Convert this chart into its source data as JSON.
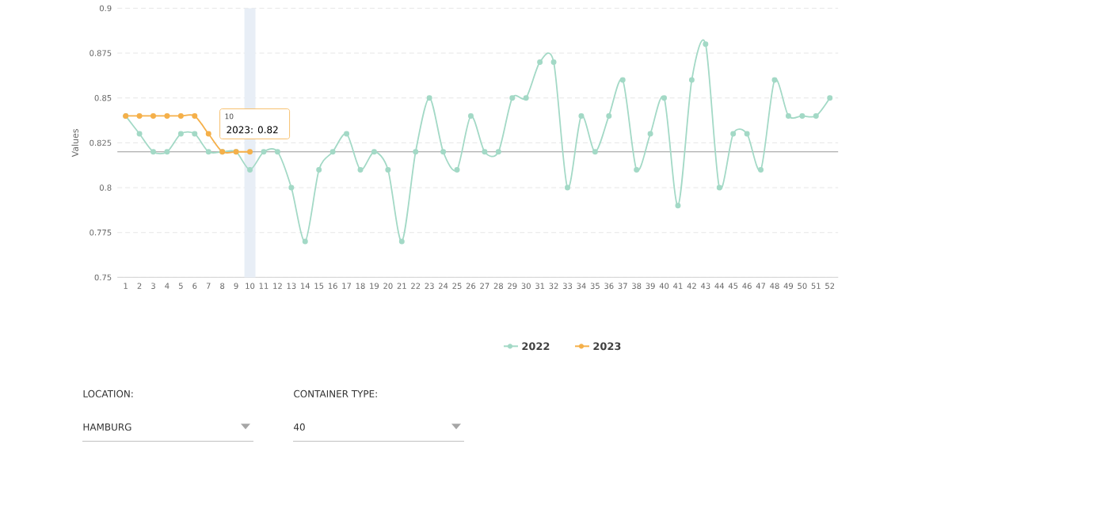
{
  "chart_data": {
    "type": "line",
    "ylabel": "Values",
    "categories": [
      "1",
      "2",
      "3",
      "4",
      "5",
      "6",
      "7",
      "8",
      "9",
      "10",
      "11",
      "12",
      "13",
      "14",
      "15",
      "16",
      "17",
      "18",
      "19",
      "20",
      "21",
      "22",
      "23",
      "24",
      "25",
      "26",
      "27",
      "28",
      "29",
      "30",
      "31",
      "32",
      "33",
      "34",
      "35",
      "36",
      "37",
      "38",
      "39",
      "40",
      "41",
      "42",
      "43",
      "44",
      "45",
      "46",
      "47",
      "48",
      "49",
      "50",
      "51",
      "52"
    ],
    "series": [
      {
        "name": "2022",
        "color": "#a3d9c6",
        "values": [
          0.84,
          0.83,
          0.82,
          0.82,
          0.83,
          0.83,
          0.82,
          0.82,
          0.82,
          0.81,
          0.82,
          0.82,
          0.8,
          0.77,
          0.81,
          0.82,
          0.83,
          0.81,
          0.82,
          0.81,
          0.77,
          0.82,
          0.85,
          0.82,
          0.81,
          0.84,
          0.82,
          0.82,
          0.85,
          0.85,
          0.87,
          0.87,
          0.8,
          0.84,
          0.82,
          0.84,
          0.86,
          0.81,
          0.83,
          0.85,
          0.79,
          0.86,
          0.88,
          0.8,
          0.83,
          0.83,
          0.81,
          0.86,
          0.84,
          0.84,
          0.84,
          0.85
        ]
      },
      {
        "name": "2023",
        "color": "#f5b04a",
        "values": [
          0.84,
          0.84,
          0.84,
          0.84,
          0.84,
          0.84,
          0.83,
          0.82,
          0.82,
          0.82,
          null,
          null,
          null,
          null,
          null,
          null,
          null,
          null,
          null,
          null,
          null,
          null,
          null,
          null,
          null,
          null,
          null,
          null,
          null,
          null,
          null,
          null,
          null,
          null,
          null,
          null,
          null,
          null,
          null,
          null,
          null,
          null,
          null,
          null,
          null,
          null,
          null,
          null,
          null,
          null,
          null,
          null
        ]
      }
    ],
    "ylim": [
      0.75,
      0.9
    ],
    "yticks": [
      0.75,
      0.775,
      0.8,
      0.825,
      0.85,
      0.875,
      0.9
    ],
    "grid": "y",
    "legend": "bottom",
    "marker": "circle",
    "line_style": "solid",
    "ref_lines": [
      {
        "axis": "y",
        "value": 0.82,
        "color": "#999999"
      }
    ],
    "bands": [
      {
        "axis": "x",
        "from": "10",
        "to": "10",
        "color": "#e8eef6"
      }
    ],
    "annotations": [
      "10",
      "2023: 0.82",
      "LOCATION:",
      "HAMBURG",
      "CONTAINER TYPE:",
      "40"
    ]
  }
}
